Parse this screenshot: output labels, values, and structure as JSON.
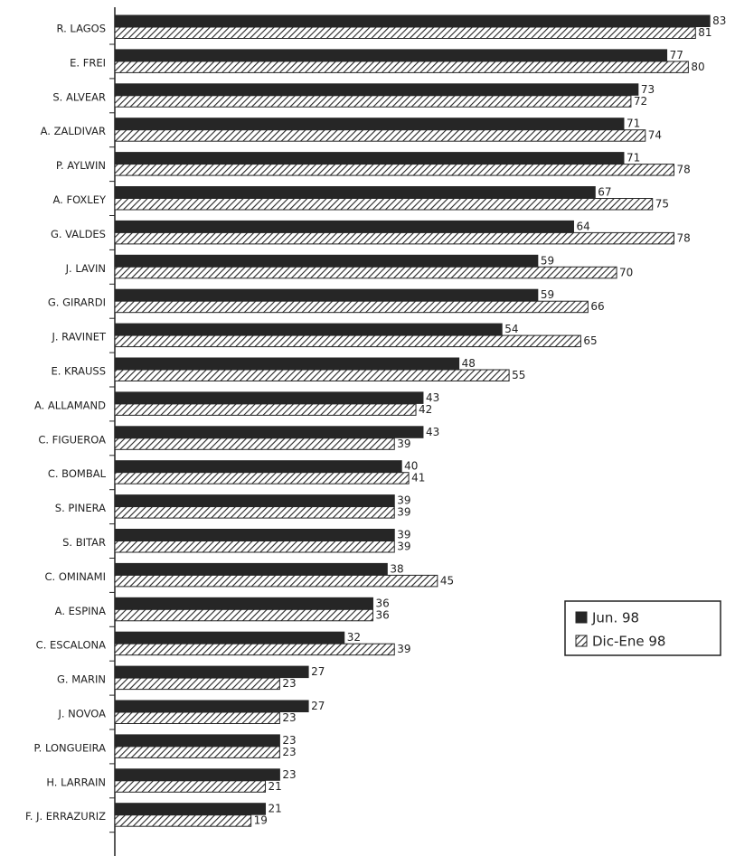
{
  "chart_data": {
    "type": "hbar",
    "categories": [
      "R. LAGOS",
      "E. FREI",
      "S. ALVEAR",
      "A. ZALDIVAR",
      "P. AYLWIN",
      "A. FOXLEY",
      "G. VALDES",
      "J. LAVIN",
      "G. GIRARDI",
      "J. RAVINET",
      "E. KRAUSS",
      "A. ALLAMAND",
      "C. FIGUEROA",
      "C. BOMBAL",
      "S. PINERA",
      "S. BITAR",
      "C. OMINAMI",
      "A. ESPINA",
      "C. ESCALONA",
      "G. MARIN",
      "J. NOVOA",
      "P. LONGUEIRA",
      "H. LARRAIN",
      "F. J. ERRAZURIZ"
    ],
    "series": [
      {
        "name": "Jun. 98",
        "color": "#262626",
        "pattern": "solid",
        "values": [
          83,
          77,
          73,
          71,
          71,
          67,
          64,
          59,
          59,
          54,
          48,
          43,
          43,
          40,
          39,
          39,
          38,
          36,
          32,
          27,
          27,
          23,
          23,
          21
        ]
      },
      {
        "name": "Dic-Ene 98",
        "color": "#262626",
        "pattern": "hatch",
        "values": [
          81,
          80,
          72,
          74,
          78,
          75,
          78,
          70,
          66,
          65,
          55,
          42,
          39,
          41,
          39,
          39,
          45,
          36,
          39,
          23,
          23,
          23,
          21,
          19
        ]
      }
    ],
    "xlim": [
      0,
      85
    ],
    "legend": "bottom-right"
  }
}
